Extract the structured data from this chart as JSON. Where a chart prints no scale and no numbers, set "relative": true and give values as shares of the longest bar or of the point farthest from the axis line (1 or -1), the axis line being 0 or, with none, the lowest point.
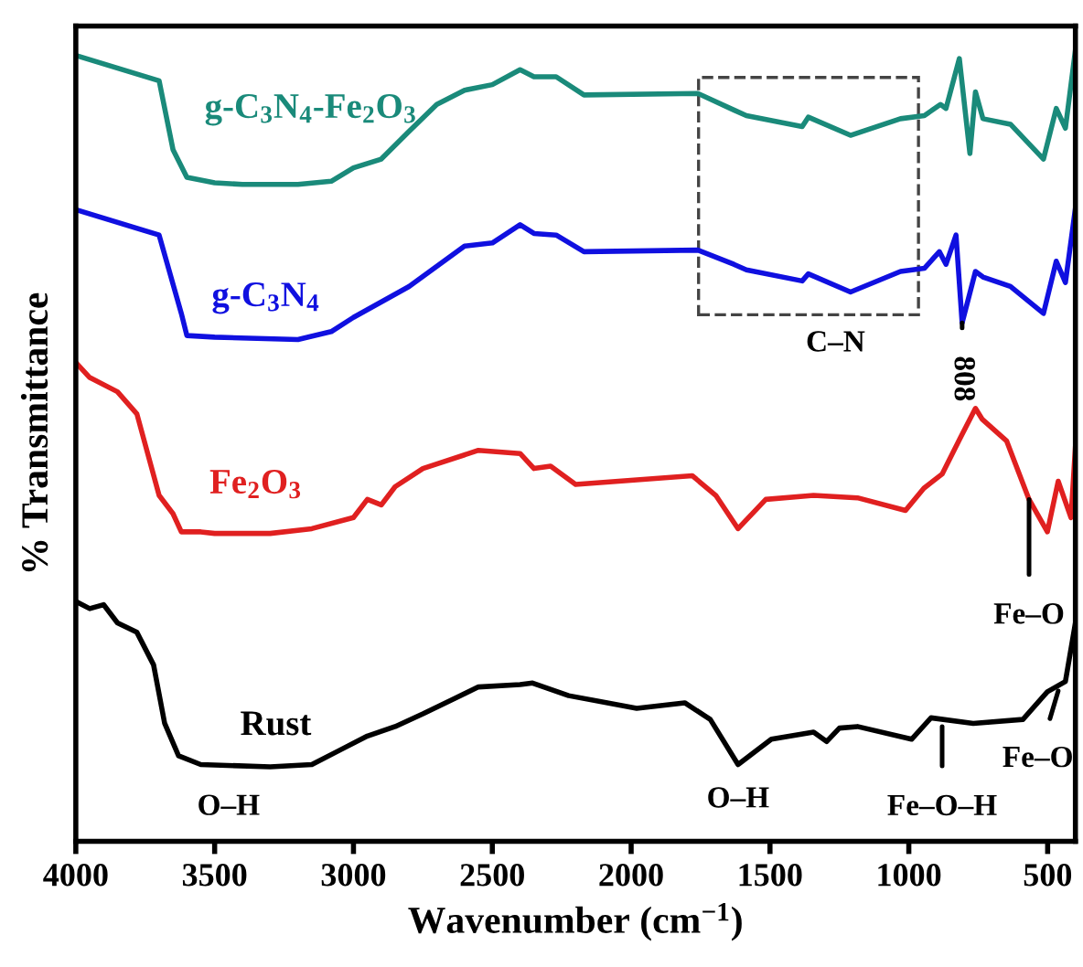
{
  "chart_data": {
    "type": "line",
    "relative": true,
    "xlabel": "Wavenumber (cm$^{−1}$)",
    "ylabel": "% Transmittance",
    "xlim": [
      4000,
      400
    ],
    "xticks": [
      4000,
      3500,
      3000,
      2500,
      2000,
      1500,
      1000,
      500
    ],
    "tick_labels": "x",
    "grid": false,
    "legend": false,
    "marker": "none",
    "line_style": "solid",
    "series": [
      {
        "name": "g-C$_{3}$N$_{4}$-Fe$_{2}$O$_{3}$",
        "color": "#1a8a7a",
        "x": [
          4000,
          3700,
          3650,
          3600,
          3500,
          3400,
          3200,
          3080,
          3000,
          2900,
          2800,
          2700,
          2600,
          2500,
          2400,
          2350,
          2270,
          2170,
          1760,
          1630,
          1585,
          1384,
          1362,
          1210,
          1030,
          944,
          886,
          866,
          818,
          780,
          760,
          733,
          634,
          515,
          469,
          436,
          400
        ],
        "values": [
          0.993,
          0.961,
          0.874,
          0.839,
          0.832,
          0.83,
          0.83,
          0.834,
          0.851,
          0.862,
          0.897,
          0.931,
          0.949,
          0.956,
          0.975,
          0.966,
          0.966,
          0.943,
          0.945,
          0.924,
          0.917,
          0.903,
          0.915,
          0.892,
          0.913,
          0.917,
          0.931,
          0.926,
          0.989,
          0.869,
          0.947,
          0.913,
          0.906,
          0.862,
          0.926,
          0.901,
          1.0
        ]
      },
      {
        "name": "g-C$_{3}$N$_{4}$",
        "color": "#1010e0",
        "x": [
          4000,
          3700,
          3620,
          3600,
          3500,
          3200,
          3080,
          3000,
          2800,
          2600,
          2500,
          2400,
          2350,
          2270,
          2170,
          1760,
          1630,
          1585,
          1384,
          1362,
          1210,
          1030,
          944,
          890,
          866,
          830,
          808,
          760,
          733,
          634,
          515,
          469,
          436,
          400
        ],
        "values": [
          0.798,
          0.766,
          0.667,
          0.639,
          0.637,
          0.634,
          0.644,
          0.662,
          0.701,
          0.752,
          0.756,
          0.779,
          0.768,
          0.766,
          0.745,
          0.747,
          0.729,
          0.722,
          0.708,
          0.717,
          0.694,
          0.72,
          0.724,
          0.745,
          0.729,
          0.766,
          0.655,
          0.72,
          0.713,
          0.701,
          0.667,
          0.733,
          0.706,
          0.8
        ]
      },
      {
        "name": "Fe$_{2}$O$_{3}$",
        "color": "#e02020",
        "x": [
          4000,
          3950,
          3850,
          3780,
          3700,
          3650,
          3620,
          3550,
          3500,
          3300,
          3150,
          3000,
          2950,
          2900,
          2850,
          2750,
          2550,
          2400,
          2350,
          2290,
          2200,
          1780,
          1695,
          1615,
          1515,
          1343,
          1185,
          1012,
          946,
          880,
          814,
          760,
          735,
          648,
          567,
          501,
          462,
          416,
          400
        ],
        "values": [
          0.605,
          0.586,
          0.568,
          0.54,
          0.437,
          0.414,
          0.391,
          0.391,
          0.389,
          0.389,
          0.395,
          0.409,
          0.432,
          0.425,
          0.448,
          0.471,
          0.494,
          0.49,
          0.471,
          0.474,
          0.451,
          0.462,
          0.437,
          0.395,
          0.432,
          0.437,
          0.434,
          0.418,
          0.446,
          0.464,
          0.51,
          0.547,
          0.533,
          0.506,
          0.432,
          0.391,
          0.455,
          0.409,
          0.499
        ]
      },
      {
        "name": "Rust",
        "color": "#000000",
        "x": [
          4000,
          3950,
          3900,
          3850,
          3780,
          3720,
          3680,
          3630,
          3550,
          3300,
          3150,
          3050,
          2950,
          2850,
          2750,
          2550,
          2400,
          2355,
          2225,
          1980,
          1807,
          1715,
          1615,
          1495,
          1343,
          1296,
          1250,
          1185,
          990,
          920,
          768,
          589,
          501,
          436,
          400
        ],
        "values": [
          0.303,
          0.294,
          0.299,
          0.276,
          0.264,
          0.223,
          0.149,
          0.108,
          0.097,
          0.094,
          0.097,
          0.115,
          0.133,
          0.145,
          0.161,
          0.195,
          0.198,
          0.2,
          0.184,
          0.168,
          0.175,
          0.154,
          0.097,
          0.129,
          0.138,
          0.126,
          0.143,
          0.145,
          0.129,
          0.156,
          0.149,
          0.154,
          0.189,
          0.202,
          0.276
        ]
      }
    ],
    "annotations": [
      "C–N",
      {
        "text": "808",
        "x": 808,
        "y": 0.655
      },
      {
        "text": "Fe–O",
        "x": 567,
        "y": 0.432
      },
      {
        "text": "O–H",
        "x": 3450,
        "y": 0.094
      },
      {
        "text": "O–H",
        "x": 1615,
        "y": 0.097
      },
      {
        "text": "Fe–O–H",
        "x": 880,
        "y": 0.145
      },
      {
        "text": "Fe–O",
        "x": 462,
        "y": 0.19
      }
    ]
  }
}
